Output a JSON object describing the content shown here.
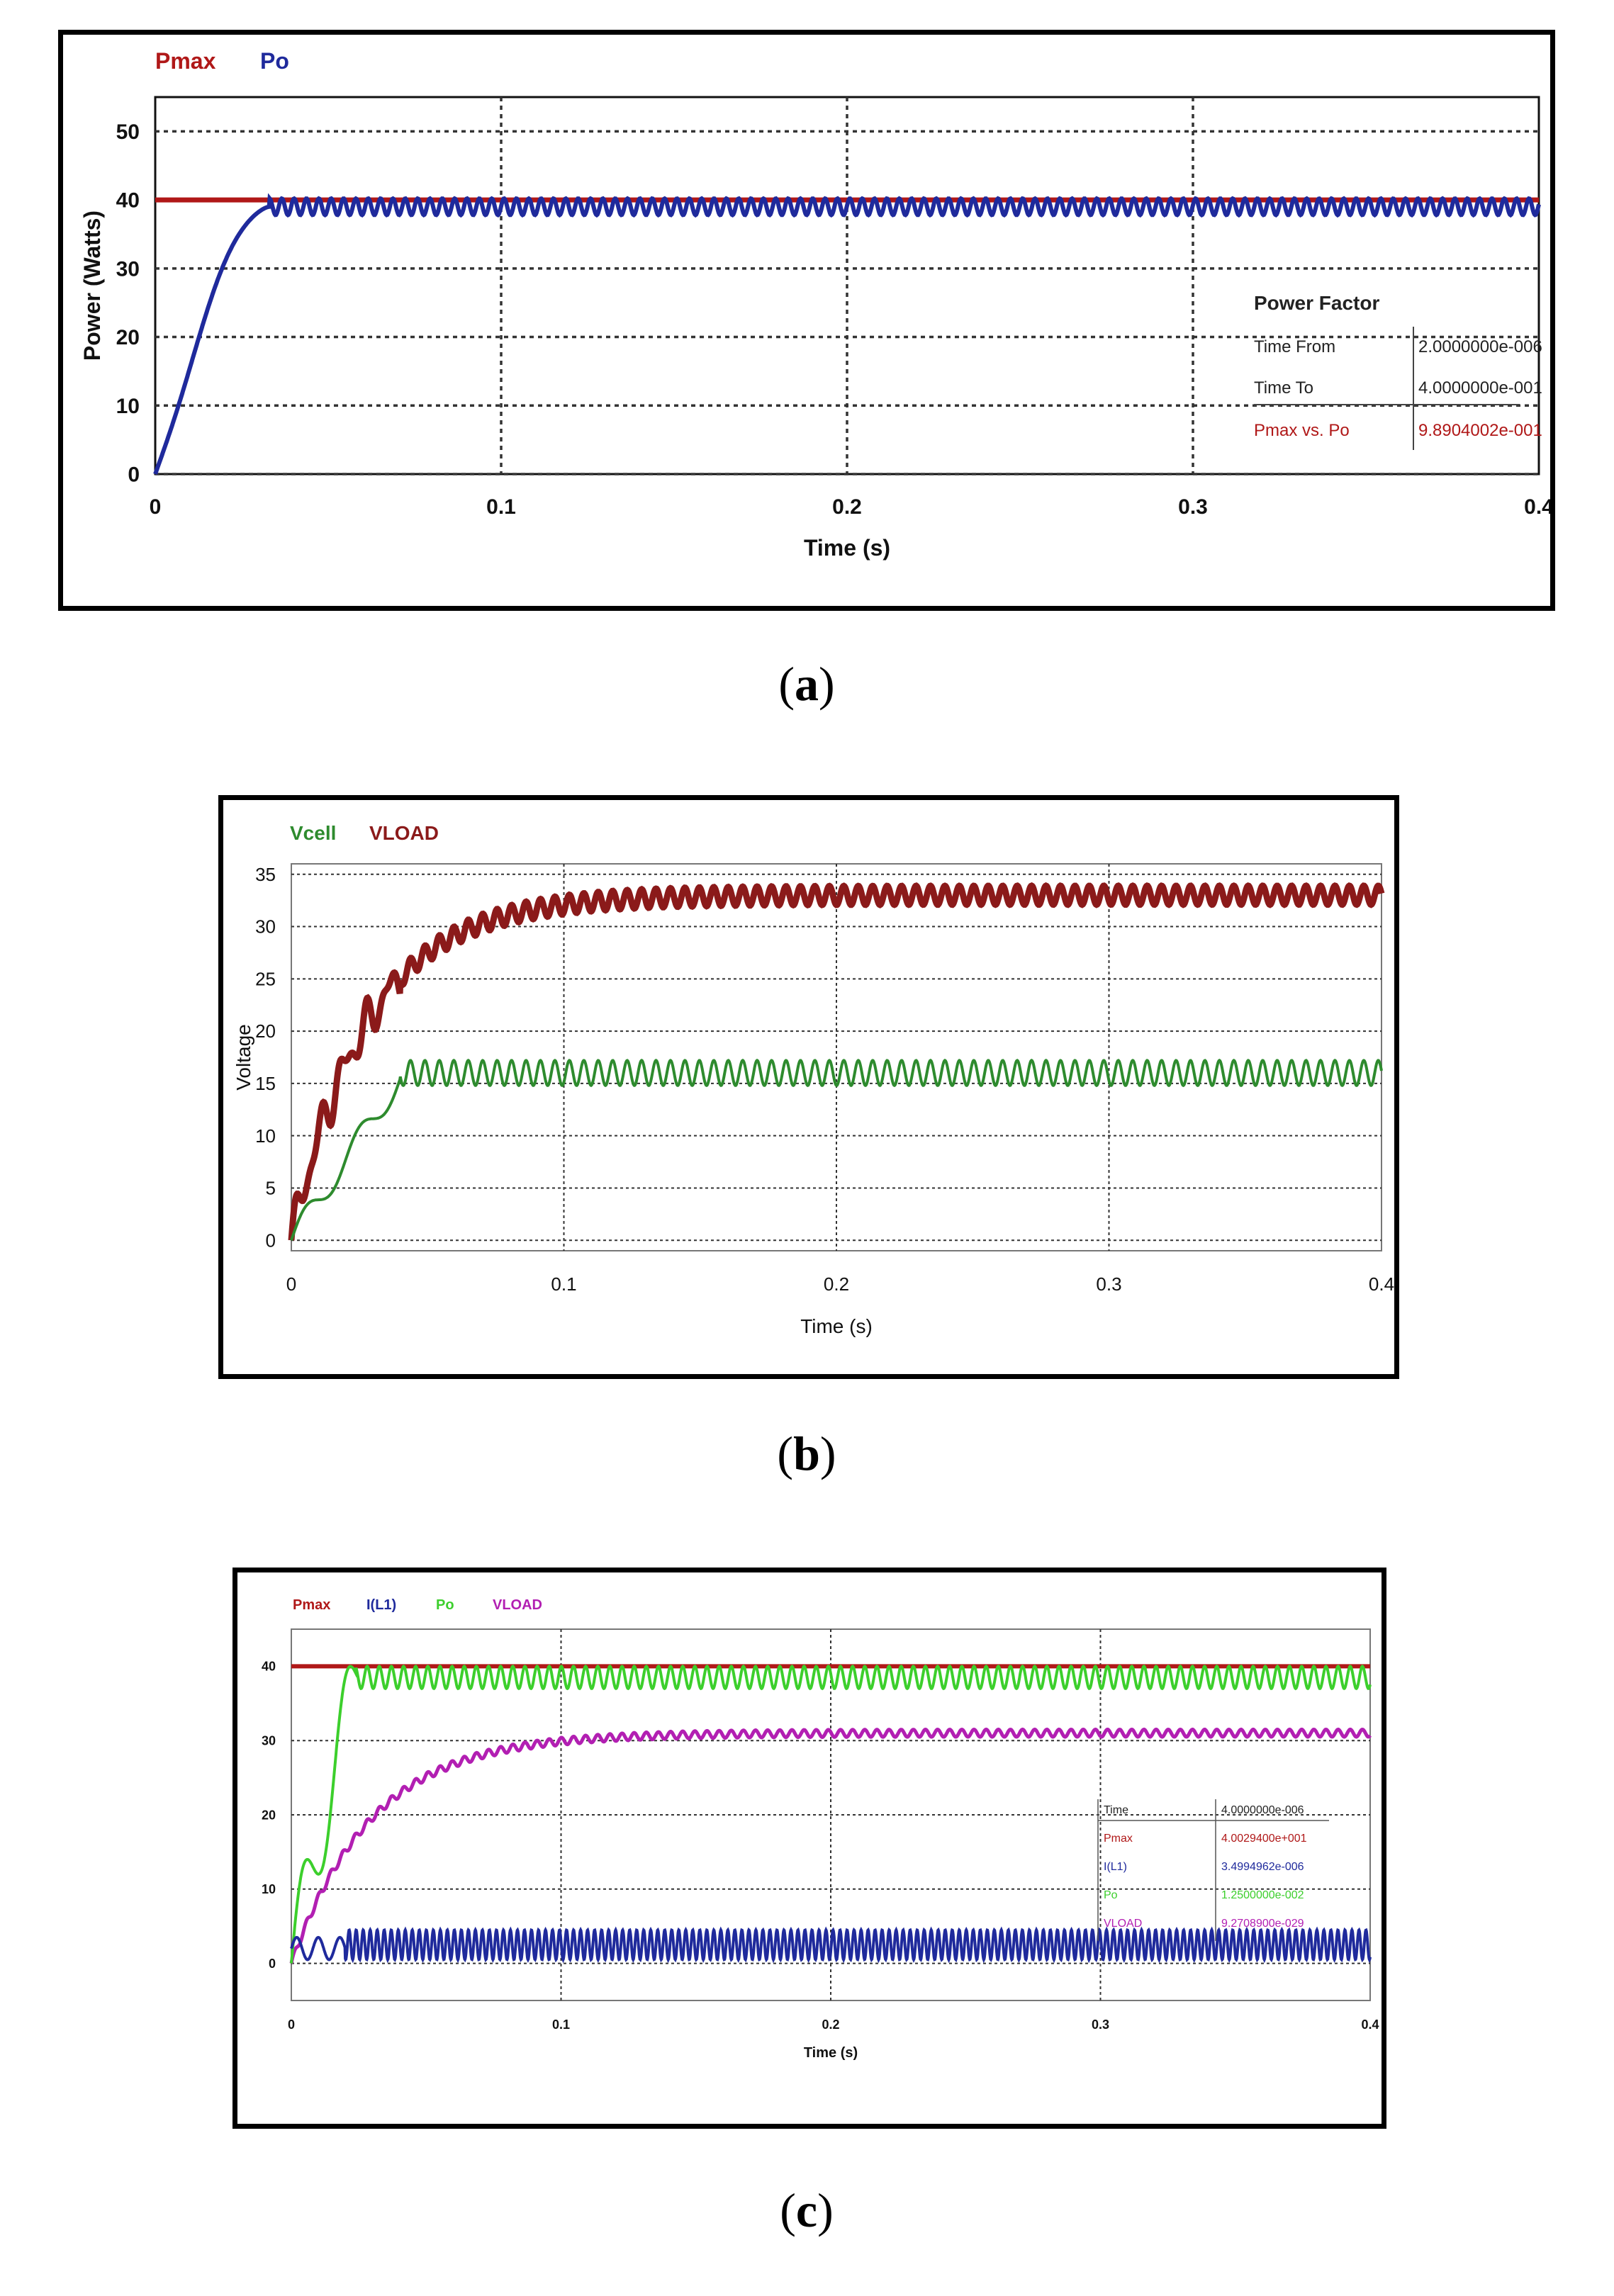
{
  "colors": {
    "pmax": "#b01818",
    "po_a": "#1f2a9c",
    "vcell": "#2e8b2e",
    "vload": "#8b1a1a",
    "il1": "#1f2a9c",
    "po_c": "#3ccf2c",
    "vload_c": "#b21fb2"
  },
  "captions": {
    "a": "a",
    "b": "b",
    "c": "c"
  },
  "chart_data": [
    {
      "id": "a",
      "type": "line",
      "xlabel": "Time (s)",
      "ylabel": "Power (Watts)",
      "xlim": [
        0,
        0.4
      ],
      "ylim": [
        0,
        55
      ],
      "xticks": [
        "0",
        "0.1",
        "0.2",
        "0.3",
        "0.4"
      ],
      "yticks": [
        "0",
        "10",
        "20",
        "30",
        "40",
        "50"
      ],
      "legend": [
        "Pmax",
        "Po"
      ],
      "series": [
        {
          "name": "Pmax",
          "description": "constant maximum power",
          "value": 40
        },
        {
          "name": "Po",
          "description": "output power rising to ~39 W by 0.033 s, then ripple 38-40 W",
          "steady_min": 38,
          "steady_max": 40,
          "settle_time": 0.033
        }
      ],
      "table": {
        "title": "Power Factor",
        "rows": [
          {
            "label": "Time  From",
            "value": "2.0000000e-006"
          },
          {
            "label": "Time  To",
            "value": "4.0000000e-001"
          },
          {
            "label": "Pmax vs. Po",
            "value": "9.8904002e-001"
          }
        ]
      }
    },
    {
      "id": "b",
      "type": "line",
      "xlabel": "Time (s)",
      "ylabel": "Voltage",
      "xlim": [
        0,
        0.4
      ],
      "ylim": [
        -1,
        36
      ],
      "xticks": [
        "0",
        "0.1",
        "0.2",
        "0.3",
        "0.4"
      ],
      "yticks": [
        "0",
        "5",
        "10",
        "15",
        "20",
        "25",
        "30",
        "35"
      ],
      "legend": [
        "Vcell",
        "VLOAD"
      ],
      "series": [
        {
          "name": "Vcell",
          "description": "cell voltage settling ~16 V with ripple",
          "steady_min": 15,
          "steady_max": 17
        },
        {
          "name": "VLOAD",
          "description": "load voltage rising exponentially to ~33 V",
          "steady_min": 32,
          "steady_max": 34
        }
      ]
    },
    {
      "id": "c",
      "type": "line",
      "xlabel": "Time (s)",
      "ylabel": "",
      "xlim": [
        0,
        0.4
      ],
      "ylim": [
        -5,
        45
      ],
      "xticks": [
        "0",
        "0.1",
        "0.2",
        "0.3",
        "0.4"
      ],
      "yticks": [
        "0",
        "10",
        "20",
        "30",
        "40"
      ],
      "legend": [
        "Pmax",
        "I(L1)",
        "Po",
        "VLOAD"
      ],
      "series": [
        {
          "name": "Pmax",
          "value": 40
        },
        {
          "name": "I(L1)",
          "description": "inductor current ripple around 2.5",
          "steady_min": 0.5,
          "steady_max": 4.5
        },
        {
          "name": "Po",
          "description": "output power settling near 38-40",
          "steady_min": 37,
          "steady_max": 40
        },
        {
          "name": "VLOAD",
          "description": "load voltage rising to ~31",
          "steady_min": 30.5,
          "steady_max": 31.5
        }
      ],
      "table": {
        "title": "",
        "rows": [
          {
            "label": "Time",
            "value": "4.0000000e-006"
          },
          {
            "label": "Pmax",
            "value": "4.0029400e+001"
          },
          {
            "label": "I(L1)",
            "value": "3.4994962e-006"
          },
          {
            "label": "Po",
            "value": "1.2500000e-002"
          },
          {
            "label": "VLOAD",
            "value": "9.2708900e-029"
          }
        ]
      }
    }
  ]
}
